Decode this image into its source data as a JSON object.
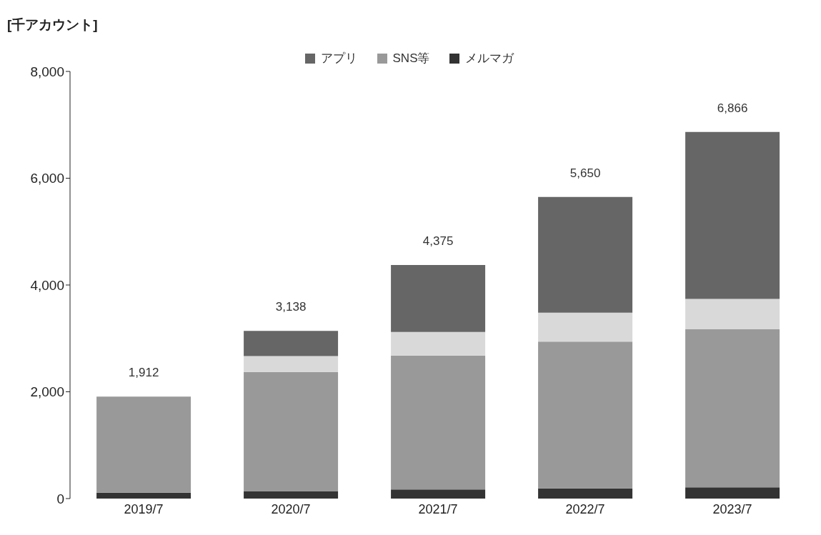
{
  "chart_data": {
    "type": "bar",
    "stacked": true,
    "ylabel": "[千アカウント]",
    "categories": [
      "2019/7",
      "2020/7",
      "2021/7",
      "2022/7",
      "2023/7"
    ],
    "series": [
      {
        "name": "メルマガ",
        "color": "#333333",
        "values": [
          110,
          140,
          170,
          190,
          210
        ]
      },
      {
        "name": "SNS等",
        "color": "#999999",
        "values": [
          1800,
          2230,
          2510,
          2750,
          2960
        ]
      },
      {
        "color": "#d9d9d9",
        "values": [
          null,
          300,
          440,
          540,
          570
        ]
      },
      {
        "name": "アプリ",
        "color": "#666666",
        "values": [
          null,
          470,
          1255,
          2170,
          3126
        ]
      }
    ],
    "totals": [
      "1,912",
      "3,138",
      "4,375",
      "5,650",
      "6,866"
    ],
    "ylim": [
      0,
      8000
    ],
    "yticks": [
      {
        "value": 0,
        "label": "0"
      },
      {
        "value": 2000,
        "label": "2,000"
      },
      {
        "value": 4000,
        "label": "4,000"
      },
      {
        "value": 6000,
        "label": "6,000"
      },
      {
        "value": 8000,
        "label": "8,000"
      }
    ],
    "grid": false,
    "legend": "top"
  }
}
